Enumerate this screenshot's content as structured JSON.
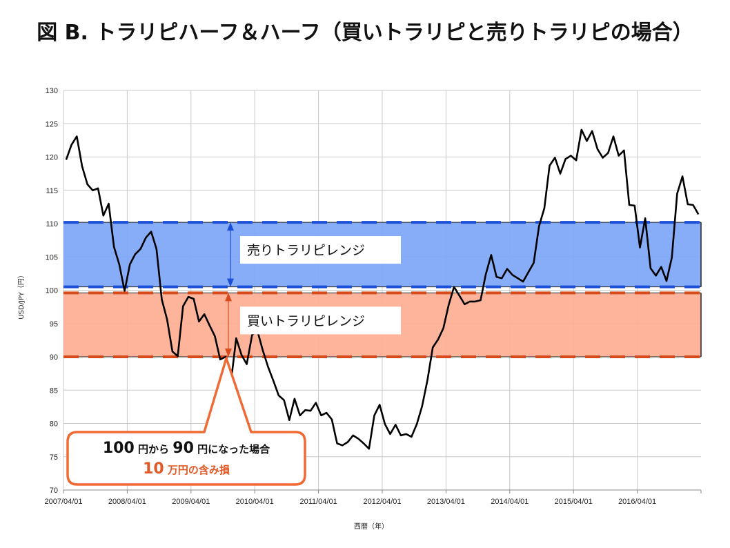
{
  "title": "図 B. トラリピハーフ＆ハーフ（買いトラリピと売りトラリピの場合）",
  "colors": {
    "sell_zone": "#7ea6f7",
    "sell_border": "#1b4fd6",
    "buy_zone": "#fdae93",
    "buy_border": "#d64a1b",
    "line": "#000000",
    "callout": "#f06a36"
  },
  "chart_data": {
    "type": "line",
    "title": "図 B. トラリピハーフ＆ハーフ（買いトラリピと売りトラリピの場合）",
    "xlabel": "西暦（年）",
    "ylabel": "USD/JPY（円）",
    "ylim": [
      70,
      130
    ],
    "yticks": [
      70,
      75,
      80,
      85,
      90,
      95,
      100,
      105,
      110,
      115,
      120,
      125,
      130
    ],
    "xlim": [
      "2007/04/01",
      "2017/04/01"
    ],
    "xticks": [
      "2007/04/01",
      "2008/04/01",
      "2009/04/01",
      "2010/04/01",
      "2011/04/01",
      "2012/04/01",
      "2013/04/01",
      "2014/04/01",
      "2015/04/01",
      "2016/04/01"
    ],
    "grid": true,
    "series": [
      {
        "x": [
          "2007/04",
          "2007/05",
          "2007/06",
          "2007/07",
          "2007/08",
          "2007/09",
          "2007/10",
          "2007/11",
          "2007/12",
          "2008/01",
          "2008/02",
          "2008/03",
          "2008/04",
          "2008/05",
          "2008/06",
          "2008/07",
          "2008/08",
          "2008/09",
          "2008/10",
          "2008/11",
          "2008/12",
          "2009/01",
          "2009/02",
          "2009/03",
          "2009/04",
          "2009/05",
          "2009/06",
          "2009/07",
          "2009/08",
          "2009/09",
          "2009/10",
          "2009/11",
          "2009/12",
          "2010/01",
          "2010/02",
          "2010/03",
          "2010/04",
          "2010/05",
          "2010/06",
          "2010/07",
          "2010/08",
          "2010/09",
          "2010/10",
          "2010/11",
          "2010/12",
          "2011/01",
          "2011/02",
          "2011/03",
          "2011/04",
          "2011/05",
          "2011/06",
          "2011/07",
          "2011/08",
          "2011/09",
          "2011/10",
          "2011/11",
          "2011/12",
          "2012/01",
          "2012/02",
          "2012/03",
          "2012/04",
          "2012/05",
          "2012/06",
          "2012/07",
          "2012/08",
          "2012/09",
          "2012/10",
          "2012/11",
          "2012/12",
          "2013/01",
          "2013/02",
          "2013/03",
          "2013/04",
          "2013/05",
          "2013/06",
          "2013/07",
          "2013/08",
          "2013/09",
          "2013/10",
          "2013/11",
          "2013/12",
          "2014/01",
          "2014/02",
          "2014/03",
          "2014/04",
          "2014/05",
          "2014/06",
          "2014/07",
          "2014/08",
          "2014/09",
          "2014/10",
          "2014/11",
          "2014/12",
          "2015/01",
          "2015/02",
          "2015/03",
          "2015/04",
          "2015/05",
          "2015/06",
          "2015/07",
          "2015/08",
          "2015/09",
          "2015/10",
          "2015/11",
          "2015/12",
          "2016/01",
          "2016/02",
          "2016/03",
          "2016/04",
          "2016/05",
          "2016/06",
          "2016/07",
          "2016/08",
          "2016/09",
          "2016/10",
          "2016/11",
          "2016/12",
          "2017/01",
          "2017/02",
          "2017/03"
        ],
        "values": [
          119.6,
          121.8,
          123.1,
          118.6,
          115.9,
          115.0,
          115.3,
          111.2,
          113.0,
          106.5,
          103.9,
          99.9,
          103.9,
          105.4,
          106.2,
          107.9,
          108.8,
          106.2,
          98.6,
          95.6,
          90.8,
          90.1,
          97.6,
          99.0,
          98.7,
          95.3,
          96.4,
          94.7,
          93.1,
          89.6,
          90.0,
          86.1,
          92.8,
          90.3,
          88.9,
          93.3,
          93.9,
          91.0,
          88.5,
          86.4,
          84.2,
          83.5,
          80.5,
          83.7,
          81.2,
          82.0,
          81.9,
          83.1,
          81.2,
          81.6,
          80.6,
          77.0,
          76.7,
          77.2,
          78.2,
          77.7,
          77.0,
          76.2,
          81.2,
          82.8,
          79.9,
          78.4,
          79.8,
          78.2,
          78.4,
          78.0,
          79.9,
          82.6,
          86.5,
          91.4,
          92.6,
          94.3,
          97.8,
          100.5,
          99.2,
          97.9,
          98.3,
          98.3,
          98.5,
          102.4,
          105.3,
          102.0,
          101.8,
          103.2,
          102.3,
          101.8,
          101.3,
          102.7,
          104.1,
          109.6,
          112.3,
          118.7,
          119.9,
          117.5,
          119.7,
          120.2,
          119.5,
          124.1,
          122.4,
          123.9,
          121.2,
          119.9,
          120.6,
          123.1,
          120.2,
          121.0,
          112.8,
          112.7,
          106.4,
          110.8,
          103.3,
          102.2,
          103.5,
          101.4,
          104.9,
          114.5,
          117.1,
          112.9,
          112.8,
          111.4
        ]
      }
    ],
    "bands": [
      {
        "name": "売りトラリピレンジ",
        "from": 100.5,
        "to": 110.2
      },
      {
        "name": "買いトラリピレンジ",
        "from": 90,
        "to": 99.6
      }
    ],
    "annotations": {
      "callout_line1": "100 円から 90 円になった場合",
      "callout_line1_parts": [
        "100",
        " 円から ",
        "90",
        " 円になった場合"
      ],
      "callout_line2_parts": [
        "10",
        " 万円の含み損"
      ]
    }
  }
}
